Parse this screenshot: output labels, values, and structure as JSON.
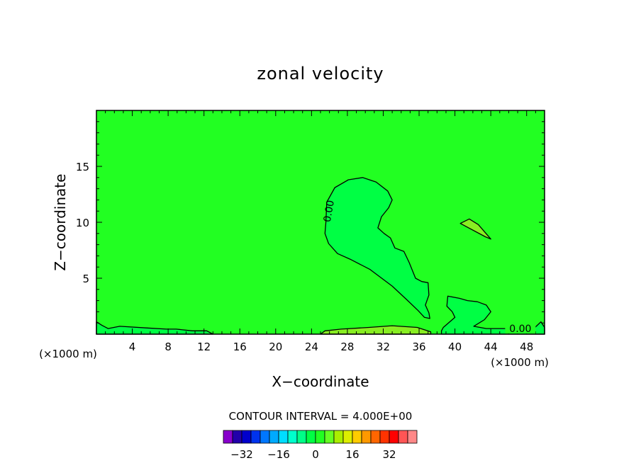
{
  "chart_data": {
    "type": "contour",
    "title": "zonal velocity",
    "xlabel": "X−coordinate",
    "ylabel": "Z−coordinate",
    "x_units": "(×1000 m)",
    "y_units": "(×1000 m)",
    "xlim": [
      0,
      50
    ],
    "ylim": [
      0,
      20
    ],
    "x_ticks": [
      4,
      8,
      12,
      16,
      20,
      24,
      28,
      32,
      36,
      40,
      44,
      48
    ],
    "y_ticks": [
      5,
      10,
      15
    ],
    "contour_label": "0.00",
    "contour_interval_text": "CONTOUR INTERVAL = 4.000E+00",
    "contour_interval": 4.0,
    "background_color": "#22ff22",
    "regions": [
      {
        "name": "positive-lobe",
        "color": "#00ff44",
        "outline": [
          [
            25.6,
            10.0
          ],
          [
            25.7,
            11.8
          ],
          [
            26.6,
            13.1
          ],
          [
            28.1,
            13.8
          ],
          [
            29.7,
            14.0
          ],
          [
            31.2,
            13.6
          ],
          [
            32.5,
            12.8
          ],
          [
            33.0,
            12.0
          ],
          [
            32.6,
            11.3
          ],
          [
            31.8,
            10.5
          ],
          [
            31.4,
            9.5
          ],
          [
            32.1,
            9.0
          ],
          [
            32.8,
            8.6
          ],
          [
            33.3,
            7.7
          ],
          [
            34.3,
            7.4
          ],
          [
            34.9,
            6.4
          ],
          [
            35.6,
            5.0
          ],
          [
            36.3,
            4.7
          ],
          [
            37.0,
            4.6
          ],
          [
            37.1,
            3.5
          ],
          [
            36.7,
            2.6
          ],
          [
            37.1,
            1.9
          ],
          [
            37.2,
            1.4
          ],
          [
            36.6,
            1.5
          ],
          [
            35.9,
            2.1
          ],
          [
            34.6,
            3.1
          ],
          [
            33.0,
            4.3
          ],
          [
            30.5,
            5.8
          ],
          [
            28.3,
            6.7
          ],
          [
            26.9,
            7.2
          ],
          [
            25.9,
            8.1
          ],
          [
            25.5,
            9.0
          ]
        ]
      },
      {
        "name": "lower-right-bump",
        "color": "#00ff44",
        "outline": [
          [
            38.5,
            0.3
          ],
          [
            38.7,
            0.6
          ],
          [
            40.0,
            1.5
          ],
          [
            39.7,
            2.0
          ],
          [
            39.1,
            2.5
          ],
          [
            39.2,
            3.4
          ],
          [
            40.5,
            3.2
          ],
          [
            41.4,
            3.0
          ],
          [
            42.5,
            2.9
          ],
          [
            43.5,
            2.6
          ],
          [
            44.0,
            2.0
          ],
          [
            43.3,
            1.3
          ],
          [
            42.1,
            0.7
          ],
          [
            43.5,
            0.5
          ],
          [
            46.0,
            0.5
          ],
          [
            47.5,
            0.4
          ],
          [
            48.8,
            0.5
          ],
          [
            49.6,
            1.1
          ],
          [
            50.0,
            0.6
          ],
          [
            50.0,
            0.0
          ],
          [
            38.5,
            0.0
          ]
        ]
      },
      {
        "name": "upper-right-blob",
        "color": "#88ee22",
        "outline": [
          [
            40.6,
            9.9
          ],
          [
            41.6,
            10.3
          ],
          [
            42.6,
            9.8
          ],
          [
            44.0,
            8.5
          ],
          [
            43.4,
            8.7
          ],
          [
            41.3,
            9.6
          ]
        ]
      },
      {
        "name": "bottom-band",
        "color": "#88ee22",
        "outline": [
          [
            25.0,
            0.0
          ],
          [
            25.5,
            0.3
          ],
          [
            27.3,
            0.45
          ],
          [
            30.4,
            0.6
          ],
          [
            33.0,
            0.75
          ],
          [
            35.8,
            0.6
          ],
          [
            37.3,
            0.2
          ],
          [
            37.3,
            0.0
          ]
        ]
      },
      {
        "name": "bottom-left-strip",
        "color": "#00ff44",
        "outline": [
          [
            0.0,
            0.0
          ],
          [
            0.0,
            1.1
          ],
          [
            0.6,
            0.8
          ],
          [
            1.3,
            0.5
          ],
          [
            2.6,
            0.7
          ],
          [
            5.7,
            0.55
          ],
          [
            7.8,
            0.45
          ],
          [
            8.9,
            0.45
          ],
          [
            10.7,
            0.3
          ],
          [
            12.3,
            0.3
          ],
          [
            13.0,
            0.0
          ]
        ]
      }
    ],
    "colorbar": {
      "colors": [
        "#8800cc",
        "#2200aa",
        "#0000cc",
        "#0033ee",
        "#0077ff",
        "#00aaff",
        "#00ddff",
        "#00ffcc",
        "#00ff88",
        "#00ff44",
        "#22ff22",
        "#66ff22",
        "#aaee00",
        "#ddee00",
        "#ffcc00",
        "#ff9900",
        "#ff6600",
        "#ff3300",
        "#ff0000",
        "#ff5555",
        "#ff8888"
      ],
      "tick_values": [
        -32,
        -16,
        0,
        16,
        32
      ]
    }
  }
}
